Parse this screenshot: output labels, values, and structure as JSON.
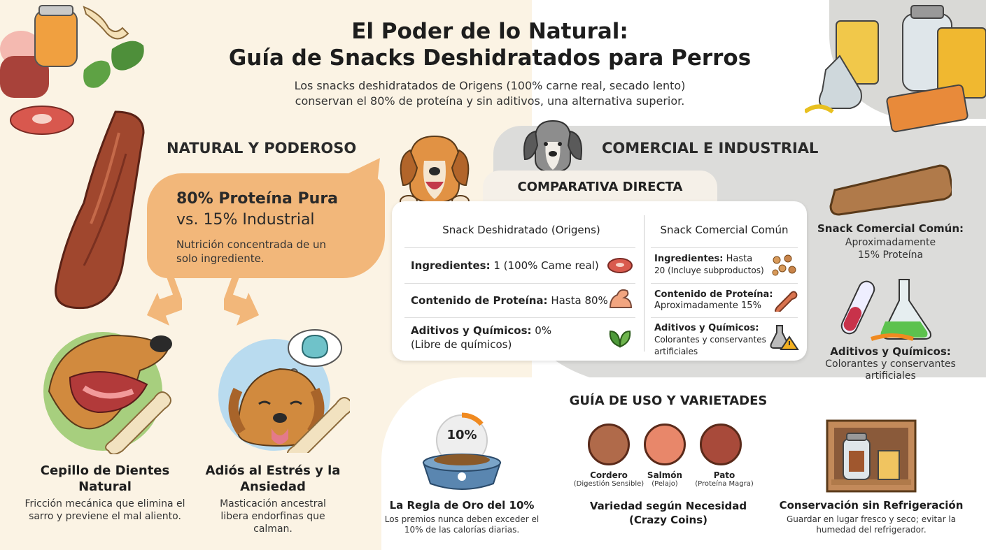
{
  "header": {
    "title_line1": "El Poder de lo Natural:",
    "title_line2": "Guía de Snacks Deshidratados para Perros",
    "subtitle_line1": "Los snacks deshidratados de Origens (100% carne real, secado lento)",
    "subtitle_line2": "conservan el 80% de proteína y sin aditivos, una alternativa superior."
  },
  "natural": {
    "heading": "NATURAL Y PODEROSO",
    "protein_line1": "80% Proteína Pura",
    "protein_line2": "vs. 15% Industrial",
    "protein_desc": "Nutrición concentrada de un solo ingrediente.",
    "benefit1_title": "Cepillo de Dientes Natural",
    "benefit1_desc": "Fricción mecánica que elimina el sarro y previene el mal aliento.",
    "benefit2_title": "Adiós al Estrés y la Ansiedad",
    "benefit2_desc": "Masticación ancestral libera endorfinas que calman."
  },
  "commercial": {
    "heading": "COMERCIAL E INDUSTRIAL",
    "side1_title": "Snack Comercial Común:",
    "side1_desc_line1": "Aproximadamente",
    "side1_desc_line2": "15% Proteína",
    "side2_title": "Aditivos y Químicos:",
    "side2_desc": "Colorantes y conservantes artificiales"
  },
  "comparison": {
    "title": "COMPARATIVA DIRECTA",
    "col_left": "Snack Deshidratado (Origens)",
    "col_right": "Snack Comercial Común",
    "rows": [
      {
        "left_label": "Ingredientes:",
        "left_value": "1 (100% Came real)",
        "right_label": "Ingredientes:",
        "right_value": "Hasta",
        "right_value2": "20 (Incluye subproductos)"
      },
      {
        "left_label": "Contenido de Proteína:",
        "left_value": "Hasta 80%",
        "right_label": "Contenido de Proteína:",
        "right_value": "Aproximadamente 15%"
      },
      {
        "left_label": "Aditivos y Químicos:",
        "left_value": "0%",
        "left_value2": "(Libre de químicos)",
        "right_label": "Aditivos y Químicos:",
        "right_value": "Colorantes y conservantes",
        "right_value2": "artificiales"
      }
    ]
  },
  "guide": {
    "title": "GUÍA DE USO Y VARIETADES",
    "rule_badge": "10%",
    "rule_title": "La Regla de Oro del 10%",
    "rule_desc": "Los premios nunca deben exceder el 10% de las calorías diarias.",
    "coins": [
      {
        "name": "Cordero",
        "sub": "(Digestión Sensible)",
        "color": "#b06a4a"
      },
      {
        "name": "Salmón",
        "sub": "(Pelajo)",
        "color": "#e8876a"
      },
      {
        "name": "Pato",
        "sub": "(Proteína Magra)",
        "color": "#a84a3a"
      }
    ],
    "variety_title": "Variedad según Necesidad (Crazy Coins)",
    "storage_title": "Conservación sin Refrigeración",
    "storage_desc": "Guardar en lugar fresco y seco; evitar la humedad del refrigerador."
  },
  "colors": {
    "bubble": "#f2b77a",
    "natural_bg": "#fbf3e4",
    "commercial_bg": "#dcdcda"
  }
}
